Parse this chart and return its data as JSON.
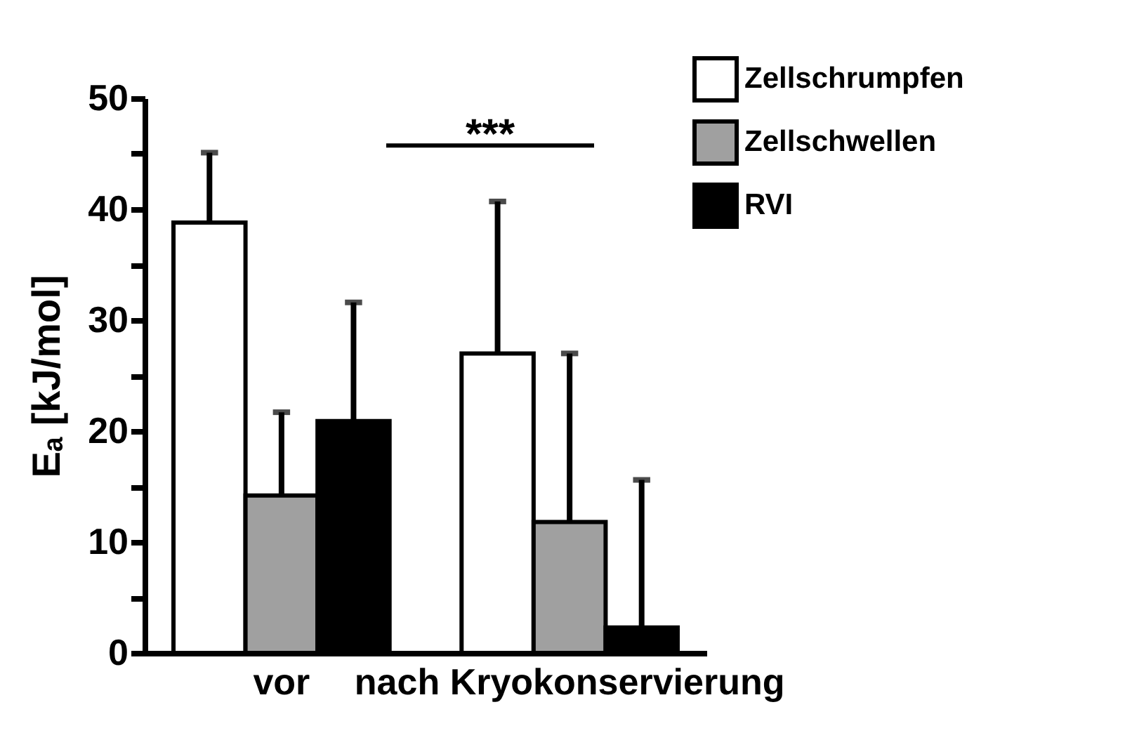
{
  "chart_data": {
    "type": "bar",
    "ylabel": "Eₐ [kJ/mol]",
    "categories": [
      "vor",
      "nach Kryokonservierung"
    ],
    "series": [
      {
        "name": "Zellschrumpfen",
        "color": "#ffffff",
        "values": [
          38.8,
          27.0
        ],
        "errors": [
          [
            38.8,
            45.1
          ],
          [
            27.0,
            40.7
          ]
        ]
      },
      {
        "name": "Zellschwellen",
        "color": "#a0a0a0",
        "values": [
          14.2,
          11.8
        ],
        "errors": [
          [
            14.2,
            21.7
          ],
          [
            11.8,
            27.0
          ]
        ]
      },
      {
        "name": "RVI",
        "color": "#000000",
        "values": [
          20.9,
          2.3
        ],
        "errors": [
          [
            20.9,
            31.6
          ],
          [
            2.3,
            15.6
          ]
        ]
      }
    ],
    "ylim": [
      0,
      50
    ],
    "yticks": [
      0,
      {
        "value": 5,
        "label": null
      },
      10,
      {
        "value": 15,
        "label": null
      },
      20,
      {
        "value": 25,
        "label": null
      },
      30,
      {
        "value": 35,
        "label": null
      },
      40,
      {
        "value": 45,
        "label": null
      },
      50
    ],
    "annotations": [
      "***"
    ],
    "legend": "top right",
    "grid": false
  }
}
